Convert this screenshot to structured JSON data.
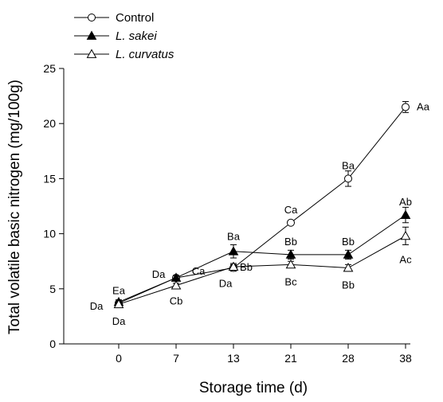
{
  "chart_data": {
    "type": "line",
    "xlabel": "Storage time (d)",
    "ylabel": "Total volatile basic nitrogen (mg/100g)",
    "x": [
      "0",
      "7",
      "13",
      "21",
      "28",
      "38"
    ],
    "ylim": [
      0,
      25
    ],
    "yticks": [
      0,
      5,
      10,
      15,
      20,
      25
    ],
    "grid": false,
    "legend_position": "top-left",
    "series": [
      {
        "name": "Control",
        "marker": "open-circle",
        "values": [
          3.7,
          6.0,
          6.9,
          11.0,
          15.0,
          21.5
        ],
        "errors": [
          0.2,
          0.2,
          0.3,
          0.2,
          0.7,
          0.5
        ],
        "labels": [
          "Da",
          "Ca",
          "Da",
          "Ca",
          "Ba",
          "Aa"
        ]
      },
      {
        "name": "L. sakei",
        "marker": "filled-triangle",
        "values": [
          3.8,
          6.0,
          8.4,
          8.1,
          8.1,
          11.7
        ],
        "errors": [
          0.2,
          0.2,
          0.6,
          0.4,
          0.4,
          0.7
        ],
        "labels": [
          "Ea",
          "Da",
          "Ba",
          "Bb",
          "Bb",
          "Ab"
        ]
      },
      {
        "name": "L. curvatus",
        "marker": "open-triangle",
        "values": [
          3.6,
          5.3,
          7.0,
          7.2,
          6.9,
          9.8
        ],
        "errors": [
          0.2,
          0.2,
          0.3,
          0.3,
          0.3,
          0.8
        ],
        "labels": [
          "Da",
          "Cb",
          "Bb",
          "Bc",
          "Bb",
          "Ac"
        ]
      }
    ]
  }
}
